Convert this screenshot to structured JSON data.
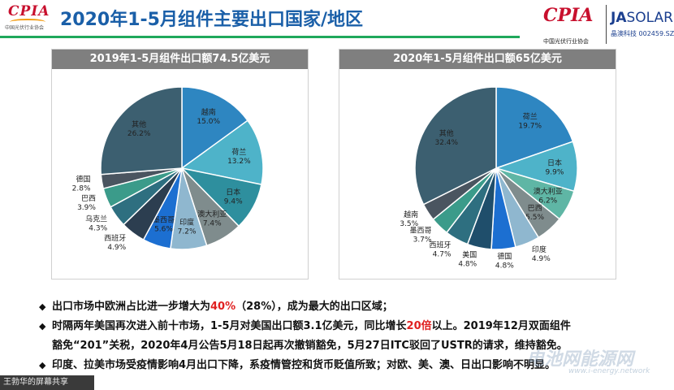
{
  "header": {
    "title": "2020年1-5月组件主要出口国家/地区",
    "logo_left": {
      "mark": "CPIA",
      "sub": "中国光伏行业协会"
    },
    "logo_right": {
      "mark": "CPIA",
      "sub": "中国光伏行业协会"
    },
    "ja_logo": {
      "brand": "JA",
      "text": "SOLAR",
      "sub": "晶澳科技 002459.SZ"
    }
  },
  "chart_data": [
    {
      "type": "pie",
      "title": "2019年1-5月组件出口额74.5亿美元",
      "slices": [
        {
          "label": "越南",
          "value": 15.0,
          "display": "15.0%"
        },
        {
          "label": "荷兰",
          "value": 13.2,
          "display": "13.2%"
        },
        {
          "label": "日本",
          "value": 9.4,
          "display": "9.4%"
        },
        {
          "label": "澳大利亚",
          "value": 7.4,
          "display": "7.4%"
        },
        {
          "label": "印度",
          "value": 7.2,
          "display": "7.2%"
        },
        {
          "label": "墨西哥",
          "value": 5.6,
          "display": "5.6%"
        },
        {
          "label": "西班牙",
          "value": 4.9,
          "display": "4.9%"
        },
        {
          "label": "乌克兰",
          "value": 4.3,
          "display": "4.3%"
        },
        {
          "label": "巴西",
          "value": 3.9,
          "display": "3.9%"
        },
        {
          "label": "德国",
          "value": 2.8,
          "display": "2.8%"
        },
        {
          "label": "其他",
          "value": 26.2,
          "display": "26.2%"
        }
      ]
    },
    {
      "type": "pie",
      "title": "2020年1-5月组件出口额65亿美元",
      "slices": [
        {
          "label": "荷兰",
          "value": 19.7,
          "display": "19.7%"
        },
        {
          "label": "日本",
          "value": 9.9,
          "display": "9.9%"
        },
        {
          "label": "澳大利亚",
          "value": 6.2,
          "display": "6.2%"
        },
        {
          "label": "巴西",
          "value": 5.5,
          "display": "5.5%"
        },
        {
          "label": "印度",
          "value": 4.9,
          "display": "4.9%"
        },
        {
          "label": "德国",
          "value": 4.8,
          "display": "4.8%"
        },
        {
          "label": "美国",
          "value": 4.8,
          "display": "4.8%"
        },
        {
          "label": "西班牙",
          "value": 4.7,
          "display": "4.7%"
        },
        {
          "label": "墨西哥",
          "value": 3.7,
          "display": "3.7%"
        },
        {
          "label": "越南",
          "value": 3.5,
          "display": "3.5%"
        },
        {
          "label": "其他",
          "value": 32.4,
          "display": "32.4%"
        }
      ]
    }
  ],
  "colors": {
    "slices": [
      "#2e86c1",
      "#4eb3c9",
      "#2e8f9e",
      "#7f8c8d",
      "#8fb7cf",
      "#1c6fd1",
      "#2c3e50",
      "#2e6f80",
      "#3b9b8a",
      "#4a5560",
      "#3c5f70"
    ],
    "slices2": [
      "#2e86c1",
      "#4eb3c9",
      "#5fb6a5",
      "#7f8c8d",
      "#8fb7cf",
      "#1c6fd1",
      "#1f4e6b",
      "#2e6f80",
      "#3b9b8a",
      "#4a5560",
      "#3c5f70"
    ],
    "title_blue": "#1a5fa8",
    "accent_red": "#e02020",
    "rule_green": "#1fa85b"
  },
  "bullets": {
    "b1": {
      "pre": "出口市场中欧洲占比进一步增大为",
      "hl": "40%",
      "post": "（28%），成为最大的出口区域；"
    },
    "b2": {
      "pre": "时隔两年美国再次进入前十市场，1-5月对美国出口额3.1亿美元，同比增长",
      "hl": "20倍",
      "post": "以上。2019年12月双面组件"
    },
    "b2_cont": "豁免“201”关税，2020年4月公告5月18日起再次撤销豁免，5月27日ITC驳回了USTR的请求，维持豁免。",
    "b3": "印度、拉美市场受疫情影响4月出口下降，系疫情管控和货币贬值所致；对欧、美、澳、日出口影响不明显。"
  },
  "footer": {
    "share_text": "王勃华的屏幕共享"
  },
  "watermark": {
    "text": "电池网能源网",
    "sub": "www.i-energy.network"
  }
}
